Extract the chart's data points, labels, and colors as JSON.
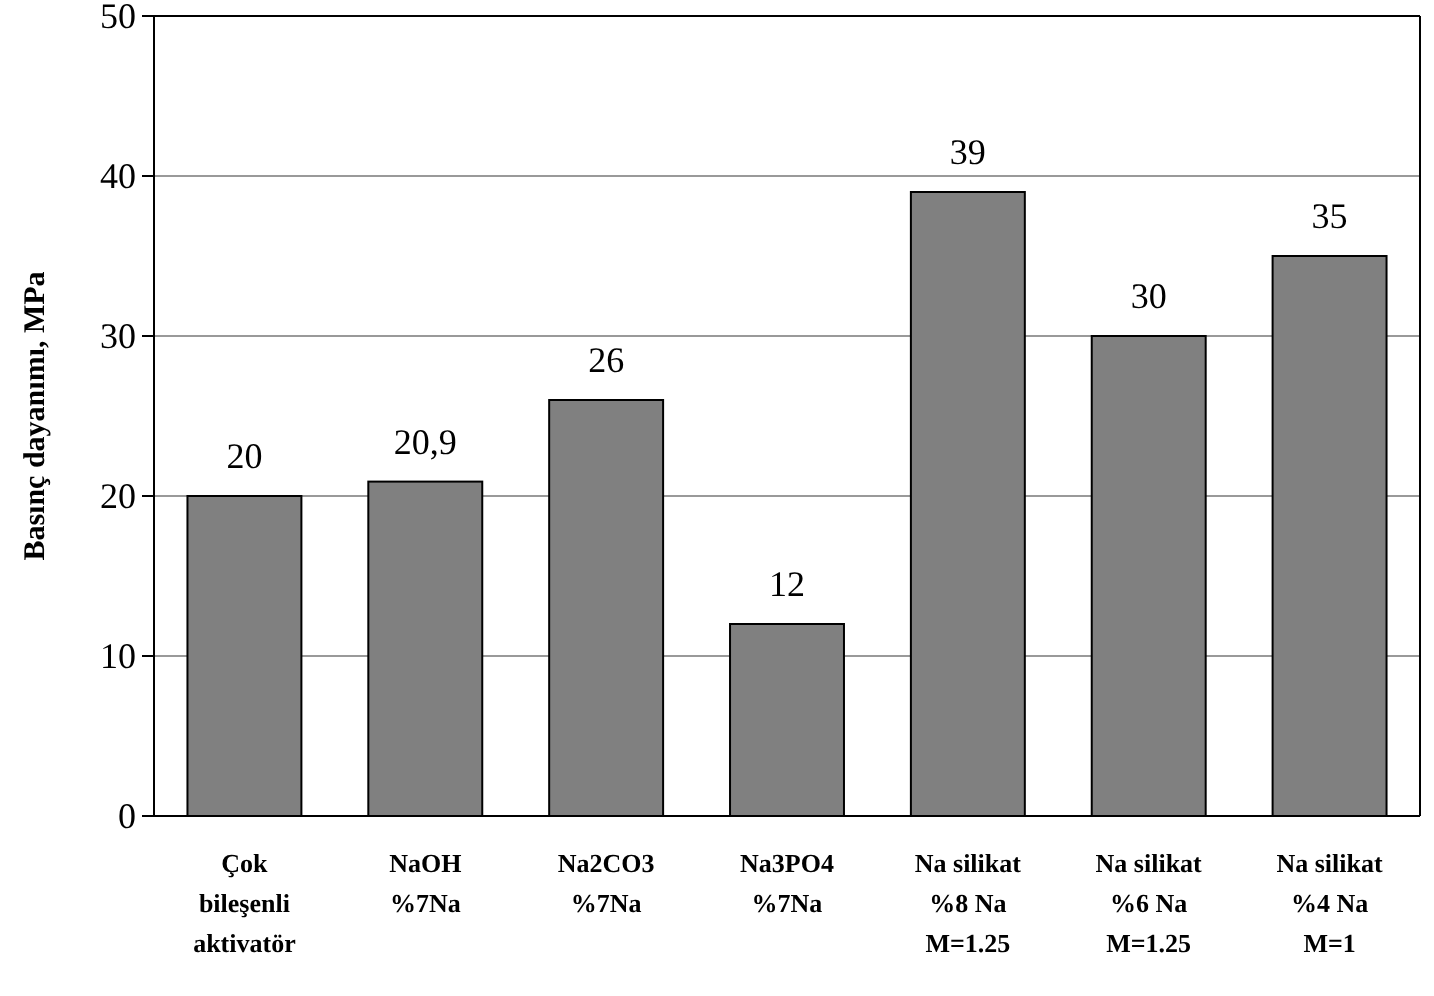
{
  "chart_data": {
    "type": "bar",
    "ylabel": "Basınç dayanımı, MPa",
    "categories": [
      "Çok\nbileşenli\naktivatör",
      "NaOH\n%7Na",
      "Na2CO3\n%7Na",
      "Na3PO4\n%7Na",
      "Na silikat\n%8 Na\nM=1.25",
      "Na silikat\n%6 Na\nM=1.25",
      "Na silikat\n%4 Na\nM=1"
    ],
    "values": [
      20,
      20.9,
      26,
      12,
      39,
      30,
      35
    ],
    "value_labels": [
      "20",
      "20,9",
      "26",
      "12",
      "39",
      "30",
      "35"
    ],
    "color": "#808080",
    "ylim": [
      0,
      50
    ],
    "yticks": [
      0,
      10,
      20,
      30,
      40,
      50
    ],
    "grid": "y"
  }
}
